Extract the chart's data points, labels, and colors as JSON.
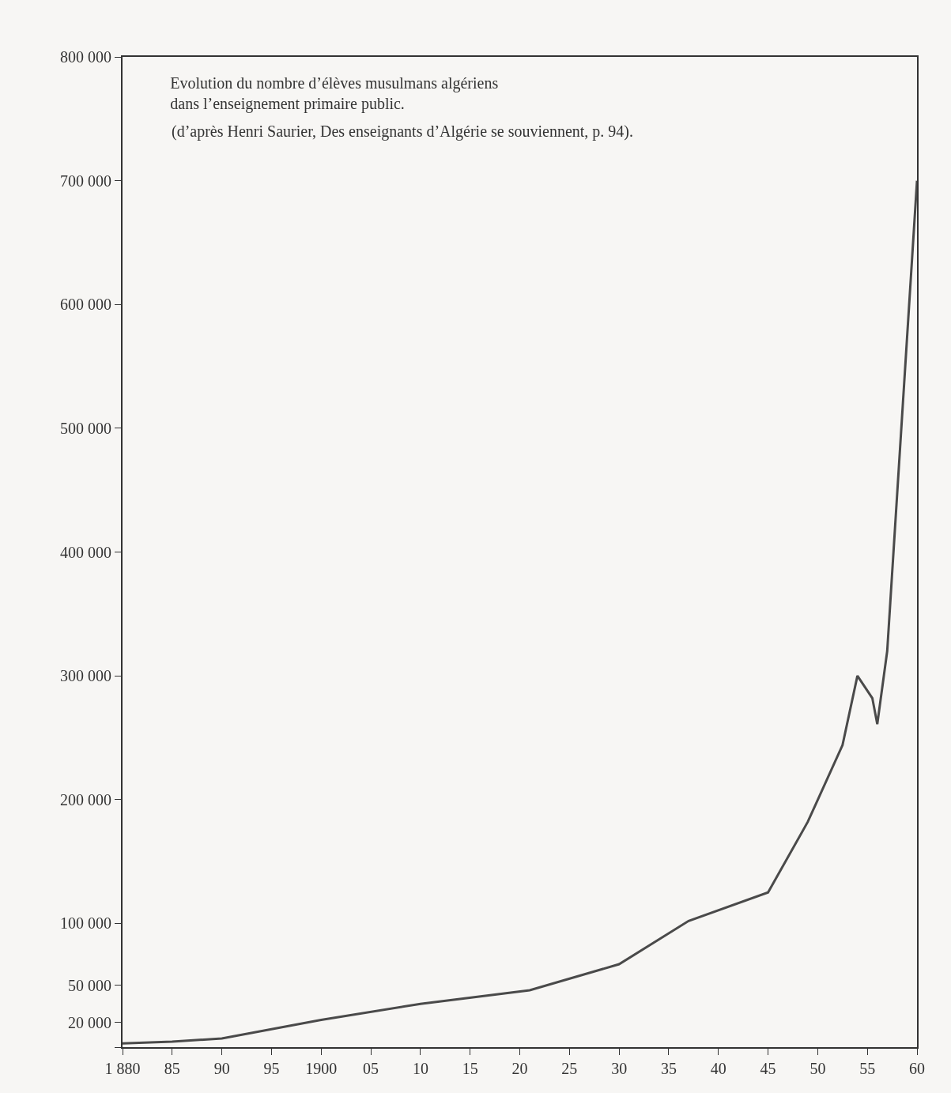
{
  "chart_data": {
    "type": "line",
    "title": "Evolution du nombre d’élèves musulmans algériens\ndans l’enseignement primaire public.",
    "annotations": [
      "(d’après Henri Saurier, Des enseignants d’Algérie se souviennent, p. 94)."
    ],
    "x": [
      1880,
      1885,
      1890,
      1900,
      1910,
      1921,
      1930,
      1937,
      1945,
      1949,
      1952.5,
      1954,
      1955.5,
      1956,
      1957,
      1960
    ],
    "series": [
      {
        "color": "#4a4a4a",
        "values": [
          3000,
          4500,
          7000,
          22000,
          35000,
          46000,
          67000,
          102000,
          125000,
          182000,
          244000,
          300000,
          282000,
          261000,
          320000,
          700000
        ]
      }
    ],
    "xlim": [
      1880,
      1960
    ],
    "xticks": [
      {
        "value": 1880,
        "label": "1 880"
      },
      {
        "value": 1885,
        "label": "85"
      },
      {
        "value": 1890,
        "label": "90"
      },
      {
        "value": 1895,
        "label": "95"
      },
      1900,
      {
        "value": 1905,
        "label": "05"
      },
      {
        "value": 1910,
        "label": "10"
      },
      {
        "value": 1915,
        "label": "15"
      },
      {
        "value": 1920,
        "label": "20"
      },
      {
        "value": 1925,
        "label": "25"
      },
      {
        "value": 1930,
        "label": "30"
      },
      {
        "value": 1935,
        "label": "35"
      },
      {
        "value": 1940,
        "label": "40"
      },
      {
        "value": 1945,
        "label": "45"
      },
      {
        "value": 1950,
        "label": "50"
      },
      {
        "value": 1955,
        "label": "55"
      },
      {
        "value": 1960,
        "label": "60"
      }
    ],
    "ylim": [
      0,
      800000
    ],
    "yticks": [
      {
        "value": 0,
        "label": null
      },
      {
        "value": 20000,
        "label": "20 000"
      },
      {
        "value": 50000,
        "label": "50 000"
      },
      {
        "value": 100000,
        "label": "100 000"
      },
      {
        "value": 200000,
        "label": "200 000"
      },
      {
        "value": 300000,
        "label": "300 000"
      },
      {
        "value": 400000,
        "label": "400 000"
      },
      {
        "value": 500000,
        "label": "500 000"
      },
      {
        "value": 600000,
        "label": "600 000"
      },
      {
        "value": 700000,
        "label": "700 000"
      },
      {
        "value": 800000,
        "label": "800 000"
      }
    ],
    "grid": false,
    "marker": "none",
    "line_style": "solid"
  }
}
